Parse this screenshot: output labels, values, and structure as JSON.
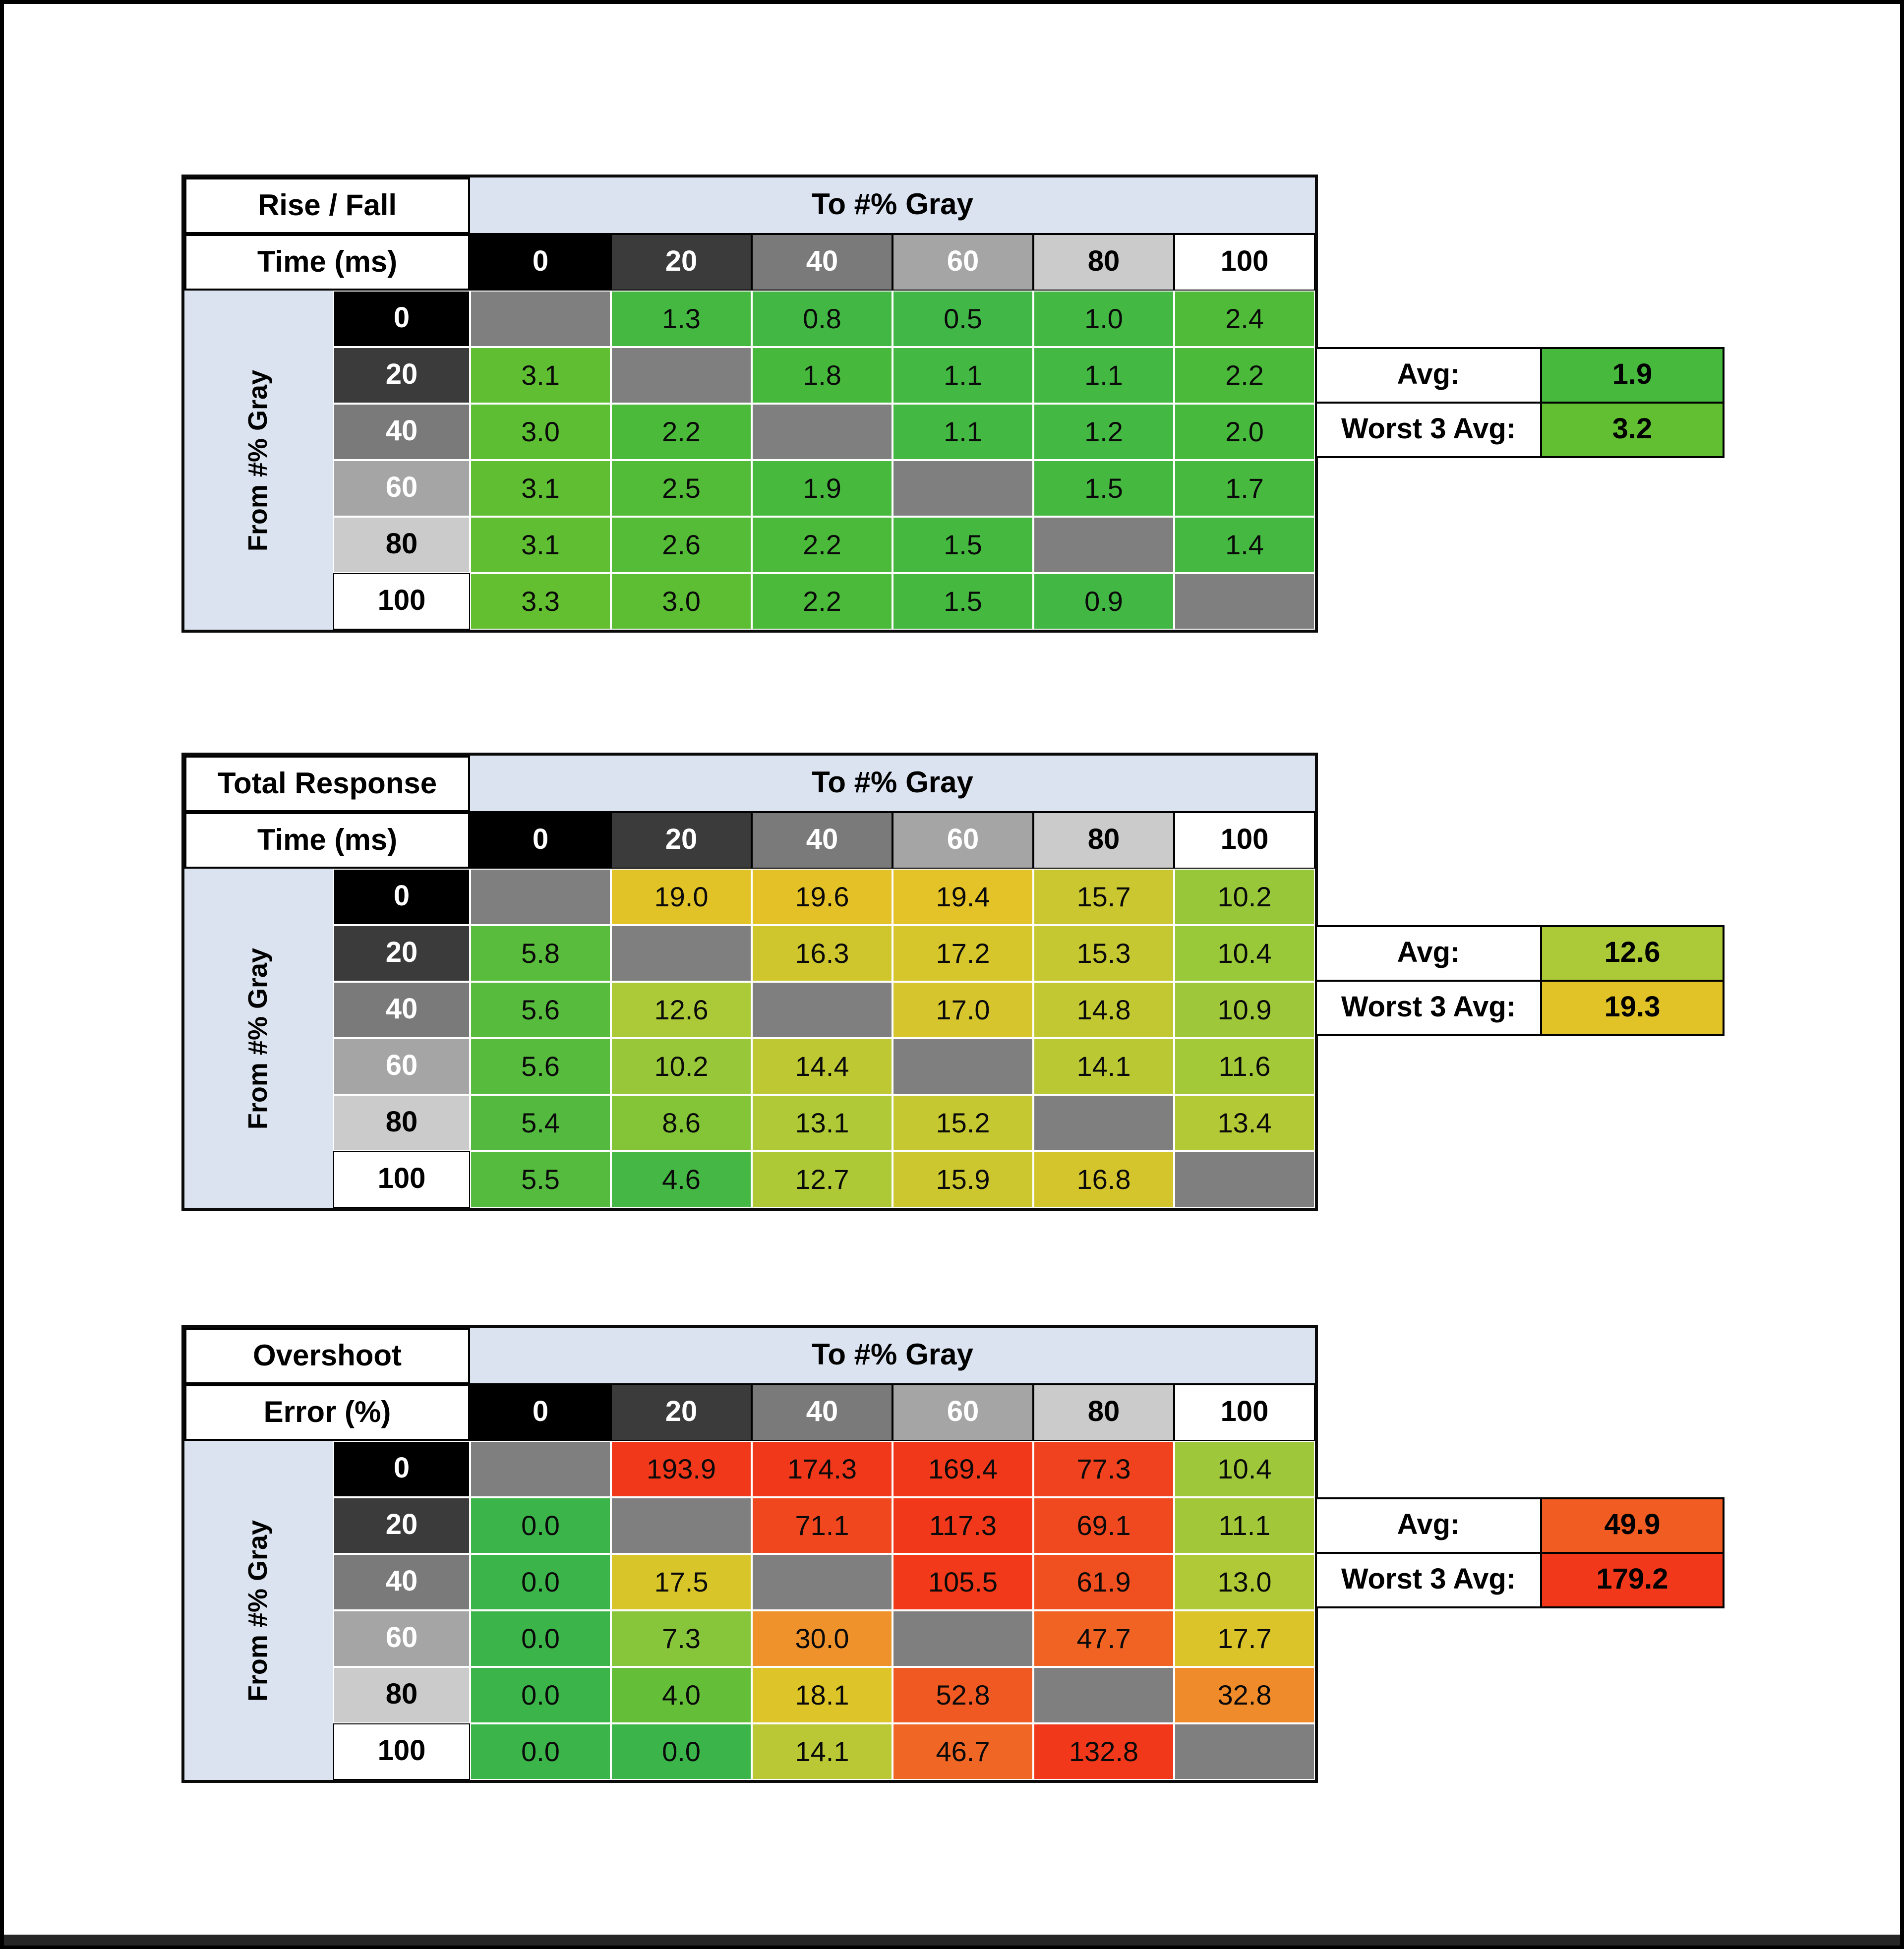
{
  "page": {
    "background": "#ffffff",
    "frame_color": "#000000"
  },
  "shared": {
    "col_group_header": "To #% Gray",
    "row_group_header": "From #% Gray",
    "avg_label": "Avg:",
    "worst_label": "Worst 3 Avg:",
    "header_bg": "#dae3ef",
    "diagonal_color": "#7f7f7f"
  },
  "gray_levels": [
    {
      "label": "0",
      "bg": "#000000",
      "text": "#ffffff"
    },
    {
      "label": "20",
      "bg": "#3b3b3b",
      "text": "#ffffff"
    },
    {
      "label": "40",
      "bg": "#7a7a7a",
      "text": "#ffffff"
    },
    {
      "label": "60",
      "bg": "#a5a5a5",
      "text": "#ffffff"
    },
    {
      "label": "80",
      "bg": "#cbcbcb",
      "text": "#000000"
    },
    {
      "label": "100",
      "bg": "#ffffff",
      "text": "#000000"
    }
  ],
  "chart_data": [
    {
      "type": "heatmap",
      "title_line1": "Rise / Fall",
      "title_line2": "Time (ms)",
      "x_axis_label": "To #% Gray",
      "y_axis_label": "From #% Gray",
      "x_ticks": [
        "0",
        "20",
        "40",
        "60",
        "80",
        "100"
      ],
      "y_ticks": [
        "0",
        "20",
        "40",
        "60",
        "80",
        "100"
      ],
      "values": [
        [
          null,
          1.3,
          0.8,
          0.5,
          1.0,
          2.4
        ],
        [
          3.1,
          null,
          1.8,
          1.1,
          1.1,
          2.2
        ],
        [
          3.0,
          2.2,
          null,
          1.1,
          1.2,
          2.0
        ],
        [
          3.1,
          2.5,
          1.9,
          null,
          1.5,
          1.7
        ],
        [
          3.1,
          2.6,
          2.2,
          1.5,
          null,
          1.4
        ],
        [
          3.3,
          3.0,
          2.2,
          1.5,
          0.9,
          null
        ]
      ],
      "avg": 1.9,
      "worst_3_avg": 3.2,
      "color_stops": [
        [
          0,
          "#3eb64a"
        ],
        [
          2,
          "#47b93c"
        ],
        [
          3.5,
          "#68c02e"
        ]
      ]
    },
    {
      "type": "heatmap",
      "title_line1": "Total Response",
      "title_line2": "Time (ms)",
      "x_axis_label": "To #% Gray",
      "y_axis_label": "From #% Gray",
      "x_ticks": [
        "0",
        "20",
        "40",
        "60",
        "80",
        "100"
      ],
      "y_ticks": [
        "0",
        "20",
        "40",
        "60",
        "80",
        "100"
      ],
      "values": [
        [
          null,
          19.0,
          19.6,
          19.4,
          15.7,
          10.2
        ],
        [
          5.8,
          null,
          16.3,
          17.2,
          15.3,
          10.4
        ],
        [
          5.6,
          12.6,
          null,
          17.0,
          14.8,
          10.9
        ],
        [
          5.6,
          10.2,
          14.4,
          null,
          14.1,
          11.6
        ],
        [
          5.4,
          8.6,
          13.1,
          15.2,
          null,
          13.4
        ],
        [
          5.5,
          4.6,
          12.7,
          15.9,
          16.8,
          null
        ]
      ],
      "avg": 12.6,
      "worst_3_avg": 19.3,
      "color_stops": [
        [
          4,
          "#3bb54a"
        ],
        [
          7,
          "#6fc033"
        ],
        [
          10,
          "#96c83a"
        ],
        [
          13,
          "#afc936"
        ],
        [
          15,
          "#c3c832"
        ],
        [
          17,
          "#d6c52c"
        ],
        [
          20,
          "#e6c226"
        ]
      ]
    },
    {
      "type": "heatmap",
      "title_line1": "Overshoot",
      "title_line2": "Error (%)",
      "x_axis_label": "To #% Gray",
      "y_axis_label": "From #% Gray",
      "x_ticks": [
        "0",
        "20",
        "40",
        "60",
        "80",
        "100"
      ],
      "y_ticks": [
        "0",
        "20",
        "40",
        "60",
        "80",
        "100"
      ],
      "values": [
        [
          null,
          193.9,
          174.3,
          169.4,
          77.3,
          10.4
        ],
        [
          0.0,
          null,
          71.1,
          117.3,
          69.1,
          11.1
        ],
        [
          0.0,
          17.5,
          null,
          105.5,
          61.9,
          13.0
        ],
        [
          0.0,
          7.3,
          30.0,
          null,
          47.7,
          17.7
        ],
        [
          0.0,
          4.0,
          18.1,
          52.8,
          null,
          32.8
        ],
        [
          0.0,
          0.0,
          14.1,
          46.7,
          132.8,
          null
        ]
      ],
      "avg": 49.9,
      "worst_3_avg": 179.2,
      "color_stops": [
        [
          0,
          "#3bb54a"
        ],
        [
          5,
          "#6fc033"
        ],
        [
          8,
          "#8ec63c"
        ],
        [
          12,
          "#a8c938"
        ],
        [
          15,
          "#c0c832"
        ],
        [
          18,
          "#ddc428"
        ],
        [
          22,
          "#e8c023"
        ],
        [
          30,
          "#f0922c"
        ],
        [
          40,
          "#f07a28"
        ],
        [
          50,
          "#f05c22"
        ],
        [
          65,
          "#f04c20"
        ],
        [
          80,
          "#f0401d"
        ],
        [
          110,
          "#f2381a"
        ]
      ]
    }
  ]
}
